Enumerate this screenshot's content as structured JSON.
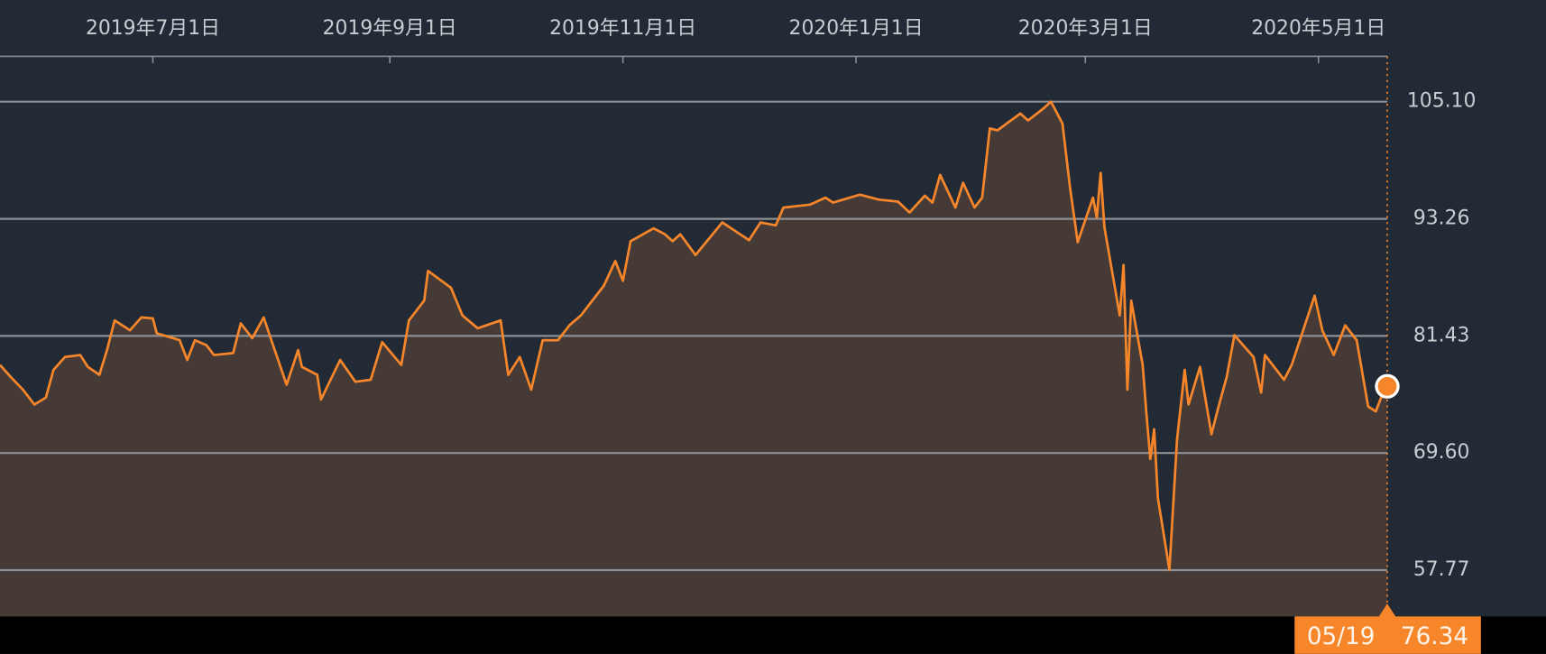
{
  "chart_data": {
    "type": "line",
    "x": [
      "2019-05-22",
      "2019-05-25",
      "2019-05-28",
      "2019-05-31",
      "2019-06-03",
      "2019-06-05",
      "2019-06-08",
      "2019-06-12",
      "2019-06-14",
      "2019-06-17",
      "2019-06-19",
      "2019-06-21",
      "2019-06-25",
      "2019-06-28",
      "2019-07-01",
      "2019-07-02",
      "2019-07-08",
      "2019-07-10",
      "2019-07-12",
      "2019-07-15",
      "2019-07-17",
      "2019-07-22",
      "2019-07-24",
      "2019-07-27",
      "2019-07-30",
      "2019-08-01",
      "2019-08-05",
      "2019-08-08",
      "2019-08-09",
      "2019-08-13",
      "2019-08-14",
      "2019-08-19",
      "2019-08-23",
      "2019-08-27",
      "2019-08-30",
      "2019-09-04",
      "2019-09-06",
      "2019-09-10",
      "2019-09-11",
      "2019-09-17",
      "2019-09-20",
      "2019-09-24",
      "2019-09-30",
      "2019-10-02",
      "2019-10-05",
      "2019-10-08",
      "2019-10-11",
      "2019-10-15",
      "2019-10-18",
      "2019-10-21",
      "2019-10-27",
      "2019-10-30",
      "2019-11-01",
      "2019-11-03",
      "2019-11-09",
      "2019-11-12",
      "2019-11-14",
      "2019-11-16",
      "2019-11-20",
      "2019-11-27",
      "2019-12-04",
      "2019-12-07",
      "2019-12-11",
      "2019-12-13",
      "2019-12-20",
      "2019-12-24",
      "2019-12-26",
      "2020-01-02",
      "2020-01-07",
      "2020-01-12",
      "2020-01-15",
      "2020-01-19",
      "2020-01-21",
      "2020-01-23",
      "2020-01-27",
      "2020-01-29",
      "2020-02-01",
      "2020-02-03",
      "2020-02-05",
      "2020-02-07",
      "2020-02-13",
      "2020-02-15",
      "2020-02-19",
      "2020-02-21",
      "2020-02-24",
      "2020-02-26",
      "2020-02-28",
      "2020-03-03",
      "2020-03-04",
      "2020-03-05",
      "2020-03-06",
      "2020-03-10",
      "2020-03-11",
      "2020-03-12",
      "2020-03-13",
      "2020-03-16",
      "2020-03-17",
      "2020-03-18",
      "2020-03-19",
      "2020-03-20",
      "2020-03-23",
      "2020-03-25",
      "2020-03-27",
      "2020-03-28",
      "2020-03-31",
      "2020-04-03",
      "2020-04-05",
      "2020-04-07",
      "2020-04-09",
      "2020-04-14",
      "2020-04-16",
      "2020-04-17",
      "2020-04-22",
      "2020-04-24",
      "2020-04-30",
      "2020-05-02",
      "2020-05-05",
      "2020-05-08",
      "2020-05-11",
      "2020-05-14",
      "2020-05-16",
      "2020-05-18",
      "2020-05-19"
    ],
    "series": [
      {
        "color": "#f7862b",
        "values": [
          78.5,
          77.2,
          76.0,
          74.5,
          75.2,
          78.0,
          79.3,
          79.5,
          78.3,
          77.5,
          80.0,
          83.0,
          82.0,
          83.3,
          83.2,
          81.7,
          81.0,
          79.0,
          81.0,
          80.5,
          79.5,
          79.7,
          82.7,
          81.2,
          83.3,
          81.0,
          76.5,
          80.0,
          78.3,
          77.5,
          75.0,
          79.0,
          76.8,
          77.0,
          80.8,
          78.5,
          83.0,
          85.0,
          88.0,
          86.3,
          83.5,
          82.2,
          83.0,
          77.5,
          79.3,
          76.0,
          81.0,
          81.0,
          82.5,
          83.5,
          86.5,
          89.0,
          87.0,
          91.0,
          92.3,
          91.7,
          91.0,
          91.7,
          89.6,
          92.9,
          91.1,
          92.9,
          92.6,
          94.4,
          94.7,
          95.4,
          94.9,
          95.7,
          95.2,
          95.0,
          93.9,
          95.6,
          94.9,
          97.7,
          94.4,
          96.9,
          94.4,
          95.4,
          102.4,
          102.2,
          103.9,
          103.2,
          104.4,
          105.1,
          102.9,
          96.4,
          90.9,
          95.4,
          93.4,
          97.9,
          92.4,
          83.5,
          88.6,
          76.0,
          85.0,
          78.5,
          73.5,
          69.0,
          72.0,
          65.0,
          57.8,
          71.0,
          78.0,
          74.5,
          78.3,
          71.5,
          74.5,
          77.3,
          81.5,
          79.3,
          75.7,
          79.5,
          77.0,
          78.5,
          85.5,
          82.0,
          79.5,
          82.5,
          81.0,
          74.3,
          73.8,
          75.8,
          76.34
        ]
      }
    ],
    "xlim": [
      "2019-05-22",
      "2020-05-19"
    ],
    "xticks": [
      {
        "value": "2019-07-01",
        "label": "2019年7月1日"
      },
      {
        "value": "2019-09-01",
        "label": "2019年9月1日"
      },
      {
        "value": "2019-11-01",
        "label": "2019年11月1日"
      },
      {
        "value": "2020-01-01",
        "label": "2020年1月1日"
      },
      {
        "value": "2020-03-01",
        "label": "2020年3月1日"
      },
      {
        "value": "2020-05-01",
        "label": "2020年5月1日"
      }
    ],
    "ylim": [
      53.09,
      109.88
    ],
    "yticks": [
      {
        "value": 105.1,
        "label": "105.10"
      },
      93.26,
      81.43,
      {
        "value": 69.6,
        "label": "69.60"
      },
      57.77
    ],
    "grid": true,
    "cursor_label": "05/19"
  }
}
